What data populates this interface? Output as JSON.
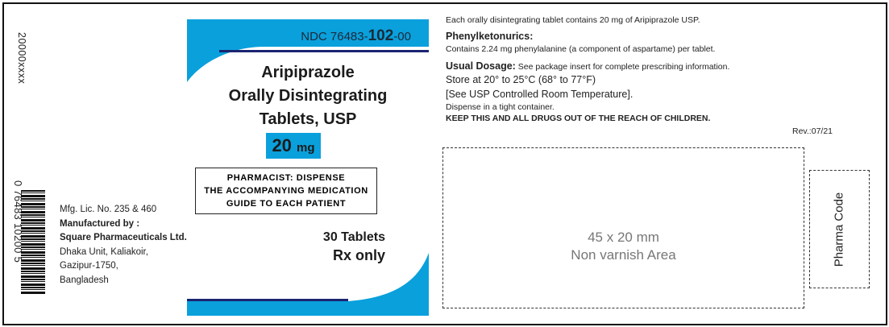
{
  "lot_code": "20000xxxx",
  "barcode": {
    "digits": "0 76483 10200 5"
  },
  "manufacturer": {
    "license": "Mfg. Lic. No. 235 & 460",
    "label": "Manufactured by :",
    "name": "Square Pharmaceuticals Ltd.",
    "address": [
      "Dhaka Unit, Kaliakoir,",
      "Gazipur-1750,",
      "Bangladesh"
    ]
  },
  "front": {
    "ndc_prefix": "NDC 76483-",
    "ndc_product": "102",
    "ndc_suffix": "-00",
    "title": [
      "Aripiprazole",
      "Orally Disintegrating",
      "Tablets, USP"
    ],
    "strength_value": "20",
    "strength_unit": "mg",
    "pharmacist_note": [
      "PHARMACIST: DISPENSE",
      "THE ACCOMPANYING MEDICATION",
      "GUIDE TO EACH PATIENT"
    ],
    "count": "30 Tablets",
    "rx": "Rx only"
  },
  "info": {
    "composition": "Each orally disintegrating tablet contains 20 mg of Aripiprazole USP.",
    "pku_heading": "Phenylketonurics:",
    "pku_text": "Contains 2.24 mg phenylalanine (a component of aspartame) per tablet.",
    "dosage_heading": "Usual Dosage:",
    "dosage_text": " See package insert for complete prescribing information.",
    "storage": "Store at 20° to 25°C (68° to 77°F)",
    "storage_ref": "[See USP Controlled Room Temperature].",
    "dispense": "Dispense in a tight container.",
    "warning": "KEEP THIS AND ALL DRUGS OUT OF THE REACH OF CHILDREN.",
    "revision": "Rev.:07/21"
  },
  "varnish_area": [
    "45 x 20 mm",
    "Non varnish Area"
  ],
  "pharma_code": "Pharma Code",
  "colors": {
    "brand_blue": "#0aa0dc",
    "navy": "#1a2470"
  }
}
